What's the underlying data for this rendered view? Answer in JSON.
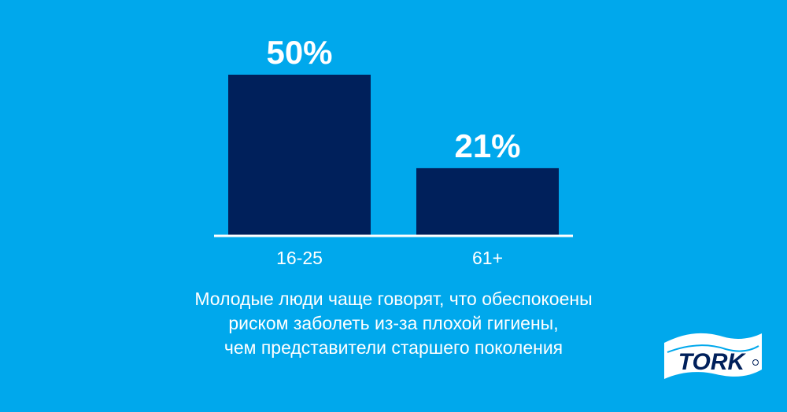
{
  "chart_data": {
    "type": "bar",
    "categories": [
      "16-25",
      "61+"
    ],
    "values": [
      50,
      21
    ],
    "value_labels": [
      "50%",
      "21%"
    ],
    "ylim": [
      0,
      50
    ],
    "grid": false,
    "colors": {
      "bar": "#00205b",
      "axis": "#ffffff",
      "text": "#ffffff",
      "background": "#00a8ec"
    }
  },
  "caption": {
    "lines": [
      "Молодые люди чаще говорят, что обеспокоены",
      "риском заболеть из-за плохой гигиены,",
      "чем представители старшего поколения"
    ]
  },
  "logo": {
    "text": "TORK",
    "color": "#00205b"
  }
}
